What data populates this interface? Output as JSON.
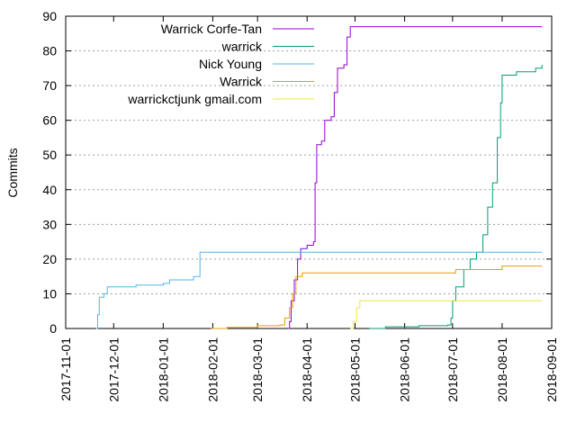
{
  "chart_data": {
    "type": "line",
    "title": "",
    "xlabel": "",
    "ylabel": "Commits",
    "ylim": [
      0,
      90
    ],
    "yticks": [
      0,
      10,
      20,
      30,
      40,
      50,
      60,
      70,
      80,
      90
    ],
    "xlim": [
      "2017-11-01",
      "2018-09-01"
    ],
    "xticks": [
      "2017-11-01",
      "2017-12-01",
      "2018-01-01",
      "2018-02-01",
      "2018-03-01",
      "2018-04-01",
      "2018-05-01",
      "2018-06-01",
      "2018-07-01",
      "2018-08-01",
      "2018-09-01"
    ],
    "grid": "horizontal dotted",
    "legend_position": "top-left",
    "step": true,
    "series": [
      {
        "name": "Warrick Corfe-Tan",
        "color": "#9400d3",
        "points": [
          [
            "2018-03-20",
            0
          ],
          [
            "2018-03-21",
            2
          ],
          [
            "2018-03-22",
            8
          ],
          [
            "2018-03-24",
            14
          ],
          [
            "2018-03-26",
            20
          ],
          [
            "2018-03-28",
            23
          ],
          [
            "2018-04-01",
            24
          ],
          [
            "2018-04-05",
            25
          ],
          [
            "2018-04-06",
            42
          ],
          [
            "2018-04-07",
            53
          ],
          [
            "2018-04-10",
            54
          ],
          [
            "2018-04-12",
            60
          ],
          [
            "2018-04-16",
            61
          ],
          [
            "2018-04-18",
            68
          ],
          [
            "2018-04-20",
            75
          ],
          [
            "2018-04-24",
            76
          ],
          [
            "2018-04-26",
            84
          ],
          [
            "2018-04-28",
            87
          ],
          [
            "2018-08-26",
            87
          ]
        ]
      },
      {
        "name": "warrick",
        "color": "#009e73",
        "points": [
          [
            "2018-05-10",
            0
          ],
          [
            "2018-05-20",
            0.5
          ],
          [
            "2018-06-10",
            0.8
          ],
          [
            "2018-06-28",
            1
          ],
          [
            "2018-06-30",
            3
          ],
          [
            "2018-07-01",
            8
          ],
          [
            "2018-07-03",
            12
          ],
          [
            "2018-07-08",
            17
          ],
          [
            "2018-07-12",
            20
          ],
          [
            "2018-07-16",
            22
          ],
          [
            "2018-07-20",
            27
          ],
          [
            "2018-07-23",
            35
          ],
          [
            "2018-07-26",
            42
          ],
          [
            "2018-07-29",
            55
          ],
          [
            "2018-07-31",
            65
          ],
          [
            "2018-08-01",
            73
          ],
          [
            "2018-08-10",
            74
          ],
          [
            "2018-08-22",
            75
          ],
          [
            "2018-08-26",
            76
          ]
        ]
      },
      {
        "name": "Nick Young",
        "color": "#56b4e9",
        "points": [
          [
            "2017-11-20",
            0
          ],
          [
            "2017-11-21",
            4
          ],
          [
            "2017-11-22",
            9
          ],
          [
            "2017-11-25",
            10
          ],
          [
            "2017-11-27",
            12
          ],
          [
            "2017-12-15",
            12.5
          ],
          [
            "2018-01-01",
            13
          ],
          [
            "2018-01-05",
            14
          ],
          [
            "2018-01-20",
            15
          ],
          [
            "2018-01-24",
            22
          ],
          [
            "2018-08-26",
            22
          ]
        ]
      },
      {
        "name": "Warrick",
        "color": "#e69f00",
        "points": [
          [
            "2018-01-31",
            0
          ],
          [
            "2018-02-10",
            0.3
          ],
          [
            "2018-03-01",
            0.8
          ],
          [
            "2018-03-15",
            1
          ],
          [
            "2018-03-18",
            3
          ],
          [
            "2018-03-21",
            6
          ],
          [
            "2018-03-23",
            10
          ],
          [
            "2018-03-25",
            15
          ],
          [
            "2018-03-29",
            16
          ],
          [
            "2018-07-01",
            16
          ],
          [
            "2018-07-03",
            17
          ],
          [
            "2018-07-30",
            17
          ],
          [
            "2018-08-01",
            18
          ],
          [
            "2018-08-26",
            18
          ]
        ]
      },
      {
        "name": "warrickctjunk gmail.com",
        "color": "#f0e442",
        "points": [
          [
            "2018-04-28",
            0
          ],
          [
            "2018-04-30",
            2
          ],
          [
            "2018-05-02",
            6
          ],
          [
            "2018-05-04",
            8
          ],
          [
            "2018-08-26",
            8
          ]
        ]
      }
    ]
  }
}
